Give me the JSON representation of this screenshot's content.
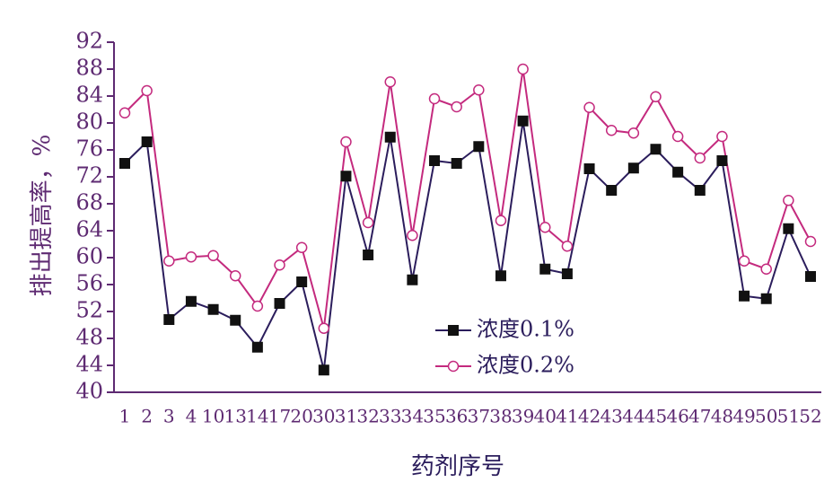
{
  "chart_data": {
    "type": "line",
    "y_label": "排出提高率，%",
    "x_label": "药剂序号",
    "categories": [
      "1",
      "2",
      "3",
      "4",
      "10",
      "13",
      "14",
      "17",
      "20",
      "30",
      "31",
      "32",
      "33",
      "34",
      "35",
      "36",
      "37",
      "38",
      "39",
      "40",
      "41",
      "42",
      "43",
      "44",
      "45",
      "46",
      "47",
      "48",
      "49",
      "50",
      "51",
      "52"
    ],
    "series": [
      {
        "name": "浓度0.1%",
        "color": "#2b1d5c",
        "marker": "square",
        "values": [
          74.0,
          77.2,
          50.8,
          53.5,
          52.3,
          50.7,
          46.7,
          53.2,
          56.4,
          43.3,
          72.1,
          60.4,
          77.9,
          56.7,
          74.4,
          74.0,
          76.5,
          57.3,
          80.3,
          58.3,
          57.6,
          73.2,
          70.0,
          73.3,
          76.1,
          72.7,
          70.0,
          74.4,
          54.3,
          53.9,
          64.3,
          57.2
        ]
      },
      {
        "name": "浓度0.2%",
        "color": "#c42a7e",
        "marker": "circle",
        "values": [
          81.5,
          84.8,
          59.5,
          60.1,
          60.3,
          57.3,
          52.8,
          58.9,
          61.5,
          49.5,
          77.2,
          65.2,
          86.1,
          63.3,
          83.6,
          82.4,
          84.9,
          65.5,
          88.0,
          64.5,
          61.7,
          82.3,
          78.9,
          78.5,
          83.9,
          78.0,
          74.8,
          78.0,
          59.5,
          58.3,
          68.5,
          62.4
        ]
      }
    ],
    "ylim": [
      40,
      92
    ],
    "yticks": [
      40,
      44,
      48,
      52,
      56,
      60,
      64,
      68,
      72,
      76,
      80,
      84,
      88,
      92
    ],
    "grid": false,
    "legend": "center"
  }
}
